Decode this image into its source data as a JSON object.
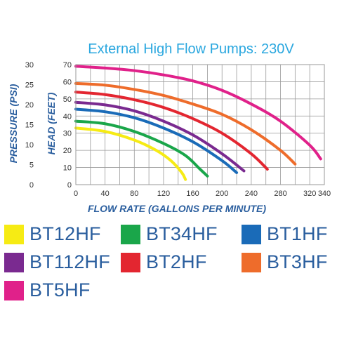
{
  "chart_data": {
    "type": "line",
    "title": "External High Flow Pumps: 230V",
    "xlabel": "FLOW RATE (GALLONS PER MINUTE)",
    "ylabel": "HEAD (FEET)",
    "ylabel_secondary": "PRESSURE (PSI)",
    "xlim": [
      0,
      340
    ],
    "ylim": [
      0,
      70
    ],
    "ylim_secondary": [
      0,
      30
    ],
    "x_ticks": [
      "0",
      "40",
      "80",
      "120",
      "160",
      "200",
      "240",
      "280",
      "320",
      "340"
    ],
    "y_ticks": [
      "0",
      "10",
      "20",
      "30",
      "40",
      "50",
      "60",
      "70"
    ],
    "y_ticks_secondary": [
      "0",
      "5",
      "10",
      "15",
      "20",
      "25",
      "30"
    ],
    "grid": true,
    "legend_position": "bottom",
    "series": [
      {
        "name": "BT12HF",
        "color": "#f6eb14",
        "x": [
          0,
          40,
          80,
          110,
          130,
          145,
          150
        ],
        "y": [
          33,
          31,
          26,
          20,
          14,
          7,
          3
        ]
      },
      {
        "name": "BT34HF",
        "color": "#1aa64a",
        "x": [
          0,
          40,
          80,
          120,
          150,
          170,
          180
        ],
        "y": [
          37,
          35.5,
          31,
          24,
          17,
          9,
          5
        ]
      },
      {
        "name": "BT1HF",
        "color": "#1a6bb8",
        "x": [
          0,
          40,
          80,
          120,
          160,
          200,
          220
        ],
        "y": [
          44,
          42.5,
          39,
          33,
          25,
          14,
          7
        ]
      },
      {
        "name": "BT112HF",
        "color": "#7a2a90",
        "x": [
          0,
          40,
          80,
          120,
          160,
          200,
          230
        ],
        "y": [
          48,
          46.5,
          43,
          37,
          29,
          18,
          8
        ]
      },
      {
        "name": "BT2HF",
        "color": "#e32630",
        "x": [
          0,
          40,
          80,
          120,
          160,
          200,
          240,
          262
        ],
        "y": [
          54,
          52.5,
          49.5,
          45,
          38.5,
          30,
          18,
          9
        ]
      },
      {
        "name": "BT3HF",
        "color": "#ee6c2b",
        "x": [
          0,
          40,
          80,
          120,
          160,
          200,
          240,
          280,
          300
        ],
        "y": [
          59,
          58,
          55.5,
          52,
          47,
          41,
          32,
          20,
          12
        ]
      },
      {
        "name": "BT5HF",
        "color": "#e0218a",
        "x": [
          0,
          40,
          80,
          120,
          160,
          200,
          240,
          280,
          320,
          335
        ],
        "y": [
          69,
          68,
          66.5,
          64,
          60.5,
          55,
          47,
          37,
          23,
          15
        ]
      }
    ]
  },
  "colors": {
    "title": "#2aa7df",
    "axis_labels": "#2a5e9e",
    "tick_labels": "#333333",
    "grid": "#9a9a9a",
    "plot_background": "#ffffff"
  }
}
